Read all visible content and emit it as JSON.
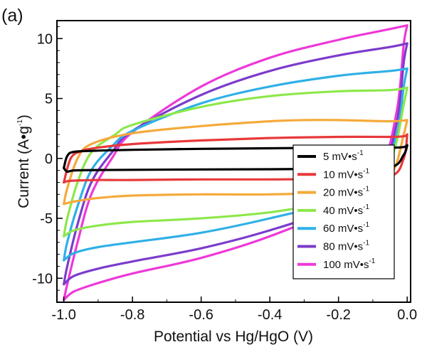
{
  "panel_label": "(a)",
  "chart_data": {
    "type": "line",
    "subtype": "cyclic-voltammogram",
    "title": "",
    "xlabel": "Potential vs Hg/HgO (V)",
    "ylabel_main": "Current (A",
    "ylabel_dot": "•",
    "ylabel_unit": "g",
    "ylabel_exp": "-1",
    "ylabel_close": ")",
    "xlim": [
      -1.02,
      0.01
    ],
    "ylim": [
      -12,
      11.5
    ],
    "xticks": [
      -1.0,
      -0.8,
      -0.6,
      -0.4,
      -0.2,
      0.0
    ],
    "xtick_labels": [
      "-1.0",
      "-0.8",
      "-0.6",
      "-0.4",
      "-0.2",
      "0.0"
    ],
    "yticks": [
      -10,
      -5,
      0,
      5,
      10
    ],
    "ytick_labels": [
      "-10",
      "-5",
      "0",
      "5",
      "10"
    ],
    "grid": false,
    "legend_position": "lower-right",
    "series": [
      {
        "name": "5 mV•s",
        "name_exp": "-1",
        "color": "#000000",
        "anodic": [
          [
            -1.0,
            -0.8
          ],
          [
            -0.99,
            0.2
          ],
          [
            -0.97,
            0.55
          ],
          [
            -0.9,
            0.65
          ],
          [
            -0.8,
            0.72
          ],
          [
            -0.6,
            0.8
          ],
          [
            -0.4,
            0.85
          ],
          [
            -0.2,
            0.9
          ],
          [
            -0.05,
            0.9
          ],
          [
            -0.01,
            0.95
          ],
          [
            0.0,
            1.1
          ]
        ],
        "cathodic": [
          [
            0.0,
            1.1
          ],
          [
            -0.01,
            0.3
          ],
          [
            -0.05,
            -0.75
          ],
          [
            -0.2,
            -0.85
          ],
          [
            -0.4,
            -0.9
          ],
          [
            -0.6,
            -0.92
          ],
          [
            -0.8,
            -0.95
          ],
          [
            -0.9,
            -0.97
          ],
          [
            -0.97,
            -1.0
          ],
          [
            -0.99,
            -1.1
          ],
          [
            -1.0,
            -0.8
          ]
        ]
      },
      {
        "name": "10 mV•s",
        "name_exp": "-1",
        "color": "#e8383a",
        "anodic": [
          [
            -1.0,
            -2.0
          ],
          [
            -0.98,
            0.0
          ],
          [
            -0.95,
            0.6
          ],
          [
            -0.9,
            0.9
          ],
          [
            -0.8,
            1.2
          ],
          [
            -0.6,
            1.5
          ],
          [
            -0.4,
            1.7
          ],
          [
            -0.2,
            1.8
          ],
          [
            -0.05,
            1.8
          ],
          [
            -0.01,
            1.85
          ],
          [
            0.0,
            2.0
          ]
        ],
        "cathodic": [
          [
            0.0,
            2.0
          ],
          [
            -0.01,
            0.0
          ],
          [
            -0.05,
            -1.5
          ],
          [
            -0.2,
            -1.7
          ],
          [
            -0.4,
            -1.75
          ],
          [
            -0.6,
            -1.75
          ],
          [
            -0.8,
            -1.8
          ],
          [
            -0.9,
            -1.8
          ],
          [
            -0.97,
            -1.85
          ],
          [
            -0.99,
            -1.9
          ],
          [
            -1.0,
            -2.0
          ]
        ]
      },
      {
        "name": "20 mV•s",
        "name_exp": "-1",
        "color": "#f5aa3c",
        "anodic": [
          [
            -1.0,
            -3.8
          ],
          [
            -0.99,
            -2.5
          ],
          [
            -0.96,
            0.0
          ],
          [
            -0.92,
            1.2
          ],
          [
            -0.8,
            2.1
          ],
          [
            -0.6,
            2.7
          ],
          [
            -0.4,
            3.1
          ],
          [
            -0.3,
            3.2
          ],
          [
            -0.2,
            3.2
          ],
          [
            -0.05,
            3.1
          ],
          [
            0.0,
            3.2
          ]
        ],
        "cathodic": [
          [
            0.0,
            3.2
          ],
          [
            -0.01,
            2.0
          ],
          [
            -0.04,
            -1.0
          ],
          [
            -0.1,
            -2.3
          ],
          [
            -0.2,
            -2.8
          ],
          [
            -0.4,
            -3.0
          ],
          [
            -0.6,
            -3.0
          ],
          [
            -0.8,
            -3.1
          ],
          [
            -0.9,
            -3.3
          ],
          [
            -0.97,
            -3.6
          ],
          [
            -1.0,
            -3.8
          ]
        ]
      },
      {
        "name": "40 mV•s",
        "name_exp": "-1",
        "color": "#8de84a",
        "anodic": [
          [
            -1.0,
            -6.5
          ],
          [
            -0.99,
            -5.0
          ],
          [
            -0.96,
            -2.0
          ],
          [
            -0.92,
            0.5
          ],
          [
            -0.85,
            2.0
          ],
          [
            -0.8,
            2.8
          ],
          [
            -0.6,
            4.3
          ],
          [
            -0.4,
            5.2
          ],
          [
            -0.2,
            5.6
          ],
          [
            -0.05,
            5.7
          ],
          [
            0.0,
            5.9
          ]
        ],
        "cathodic": [
          [
            0.0,
            5.9
          ],
          [
            -0.01,
            4.5
          ],
          [
            -0.04,
            0.5
          ],
          [
            -0.1,
            -2.5
          ],
          [
            -0.2,
            -3.5
          ],
          [
            -0.4,
            -4.5
          ],
          [
            -0.6,
            -5.0
          ],
          [
            -0.8,
            -5.3
          ],
          [
            -0.9,
            -5.6
          ],
          [
            -0.97,
            -6.0
          ],
          [
            -1.0,
            -6.5
          ]
        ]
      },
      {
        "name": "60 mV•s",
        "name_exp": "-1",
        "color": "#2fb0e6",
        "anodic": [
          [
            -1.0,
            -8.5
          ],
          [
            -0.99,
            -7.0
          ],
          [
            -0.96,
            -4.0
          ],
          [
            -0.92,
            -1.0
          ],
          [
            -0.86,
            1.0
          ],
          [
            -0.8,
            2.3
          ],
          [
            -0.6,
            4.6
          ],
          [
            -0.4,
            6.0
          ],
          [
            -0.2,
            6.9
          ],
          [
            -0.05,
            7.3
          ],
          [
            0.0,
            7.5
          ]
        ],
        "cathodic": [
          [
            0.0,
            7.5
          ],
          [
            -0.01,
            6.0
          ],
          [
            -0.03,
            2.0
          ],
          [
            -0.08,
            -1.5
          ],
          [
            -0.2,
            -3.5
          ],
          [
            -0.4,
            -5.0
          ],
          [
            -0.6,
            -6.2
          ],
          [
            -0.8,
            -7.0
          ],
          [
            -0.9,
            -7.4
          ],
          [
            -0.97,
            -7.9
          ],
          [
            -1.0,
            -8.5
          ]
        ]
      },
      {
        "name": "80 mV•s",
        "name_exp": "-1",
        "color": "#7b3ccc",
        "anodic": [
          [
            -1.0,
            -10.5
          ],
          [
            -0.99,
            -9.0
          ],
          [
            -0.96,
            -5.5
          ],
          [
            -0.92,
            -2.0
          ],
          [
            -0.86,
            0.5
          ],
          [
            -0.8,
            2.3
          ],
          [
            -0.6,
            5.3
          ],
          [
            -0.4,
            7.3
          ],
          [
            -0.2,
            8.6
          ],
          [
            -0.05,
            9.3
          ],
          [
            0.0,
            9.6
          ]
        ],
        "cathodic": [
          [
            0.0,
            9.6
          ],
          [
            -0.01,
            8.0
          ],
          [
            -0.03,
            3.0
          ],
          [
            -0.08,
            -1.5
          ],
          [
            -0.2,
            -4.0
          ],
          [
            -0.4,
            -6.0
          ],
          [
            -0.6,
            -7.5
          ],
          [
            -0.8,
            -8.6
          ],
          [
            -0.9,
            -9.2
          ],
          [
            -0.97,
            -9.8
          ],
          [
            -1.0,
            -10.5
          ]
        ]
      },
      {
        "name": "100 mV•s",
        "name_exp": "-1",
        "color": "#ee38d8",
        "anodic": [
          [
            -1.0,
            -11.8
          ],
          [
            -0.99,
            -10.5
          ],
          [
            -0.96,
            -7.0
          ],
          [
            -0.92,
            -3.0
          ],
          [
            -0.86,
            0.0
          ],
          [
            -0.8,
            2.2
          ],
          [
            -0.6,
            6.0
          ],
          [
            -0.4,
            8.4
          ],
          [
            -0.2,
            9.9
          ],
          [
            -0.05,
            10.8
          ],
          [
            0.0,
            11.1
          ]
        ],
        "cathodic": [
          [
            0.0,
            11.1
          ],
          [
            -0.01,
            9.5
          ],
          [
            -0.03,
            4.0
          ],
          [
            -0.08,
            -1.0
          ],
          [
            -0.2,
            -4.0
          ],
          [
            -0.4,
            -6.5
          ],
          [
            -0.6,
            -8.3
          ],
          [
            -0.8,
            -9.6
          ],
          [
            -0.9,
            -10.4
          ],
          [
            -0.97,
            -11.1
          ],
          [
            -1.0,
            -11.8
          ]
        ]
      }
    ]
  }
}
